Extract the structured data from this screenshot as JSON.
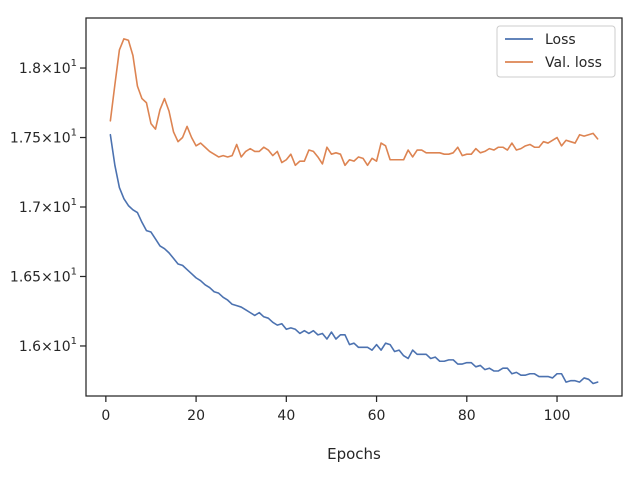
{
  "chart_data": {
    "type": "line",
    "title": "",
    "xlabel": "Epochs",
    "ylabel": "",
    "xlim": [
      -4.4,
      114.4
    ],
    "ylim": [
      15.64,
      18.36
    ],
    "grid": false,
    "legend_position": "top-right",
    "x_ticks": [
      0,
      20,
      40,
      60,
      80,
      100
    ],
    "x_tick_labels": [
      "0",
      "20",
      "40",
      "60",
      "80",
      "100"
    ],
    "y_ticks": [
      16.0,
      16.5,
      17.0,
      17.5,
      18.0
    ],
    "y_tick_mantissas": [
      "1.6",
      "1.65",
      "1.7",
      "1.75",
      "1.8"
    ],
    "y_tick_base": "10",
    "y_tick_exponent": "1",
    "colors": {
      "loss": "#4c72b0",
      "val_loss": "#dd8452",
      "axes": "#262626"
    },
    "series": [
      {
        "name": "Loss",
        "color": "#4c72b0",
        "x_start": 1,
        "x_step": 1,
        "values": [
          17.52,
          17.3,
          17.14,
          17.06,
          17.01,
          16.98,
          16.96,
          16.89,
          16.83,
          16.82,
          16.77,
          16.72,
          16.7,
          16.67,
          16.63,
          16.59,
          16.58,
          16.55,
          16.52,
          16.49,
          16.47,
          16.44,
          16.42,
          16.39,
          16.38,
          16.35,
          16.33,
          16.3,
          16.29,
          16.28,
          16.26,
          16.24,
          16.22,
          16.24,
          16.21,
          16.2,
          16.17,
          16.15,
          16.16,
          16.12,
          16.13,
          16.12,
          16.09,
          16.11,
          16.09,
          16.11,
          16.08,
          16.09,
          16.05,
          16.1,
          16.05,
          16.08,
          16.08,
          16.01,
          16.02,
          15.99,
          15.99,
          15.99,
          15.97,
          16.01,
          15.97,
          16.02,
          16.01,
          15.96,
          15.97,
          15.93,
          15.91,
          15.97,
          15.94,
          15.94,
          15.94,
          15.91,
          15.92,
          15.89,
          15.89,
          15.9,
          15.9,
          15.87,
          15.87,
          15.88,
          15.88,
          15.85,
          15.86,
          15.83,
          15.84,
          15.82,
          15.82,
          15.84,
          15.84,
          15.8,
          15.81,
          15.79,
          15.79,
          15.8,
          15.8,
          15.78,
          15.78,
          15.78,
          15.77,
          15.8,
          15.8,
          15.74,
          15.75,
          15.75,
          15.74,
          15.77,
          15.76,
          15.73,
          15.74
        ]
      },
      {
        "name": "Val. loss",
        "color": "#dd8452",
        "x_start": 1,
        "x_step": 1,
        "values": [
          17.62,
          17.88,
          18.13,
          18.21,
          18.2,
          18.09,
          17.87,
          17.78,
          17.75,
          17.6,
          17.56,
          17.7,
          17.78,
          17.69,
          17.54,
          17.47,
          17.5,
          17.58,
          17.5,
          17.44,
          17.46,
          17.43,
          17.4,
          17.38,
          17.36,
          17.37,
          17.36,
          17.37,
          17.45,
          17.36,
          17.4,
          17.42,
          17.4,
          17.4,
          17.43,
          17.41,
          17.37,
          17.4,
          17.32,
          17.34,
          17.38,
          17.3,
          17.33,
          17.33,
          17.41,
          17.4,
          17.36,
          17.31,
          17.43,
          17.38,
          17.39,
          17.38,
          17.3,
          17.34,
          17.33,
          17.36,
          17.35,
          17.3,
          17.35,
          17.33,
          17.46,
          17.44,
          17.34,
          17.34,
          17.34,
          17.34,
          17.41,
          17.36,
          17.41,
          17.41,
          17.39,
          17.39,
          17.39,
          17.39,
          17.38,
          17.38,
          17.39,
          17.43,
          17.37,
          17.38,
          17.38,
          17.42,
          17.39,
          17.4,
          17.42,
          17.41,
          17.43,
          17.43,
          17.41,
          17.46,
          17.41,
          17.42,
          17.44,
          17.45,
          17.43,
          17.43,
          17.47,
          17.46,
          17.48,
          17.5,
          17.44,
          17.48,
          17.47,
          17.46,
          17.52,
          17.51,
          17.52,
          17.53,
          17.49
        ]
      }
    ]
  }
}
